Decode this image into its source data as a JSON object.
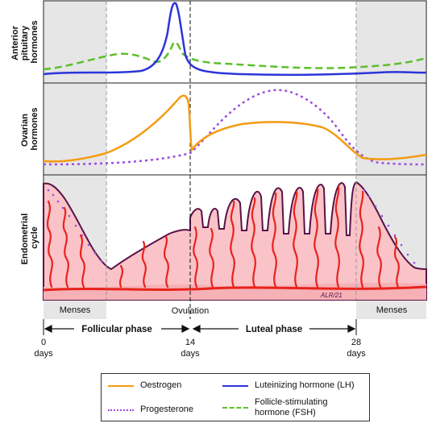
{
  "row_labels": {
    "pituitary": [
      "Anterior",
      "pituitary",
      "hormones"
    ],
    "ovarian": [
      "Ovarian",
      "hormones"
    ],
    "endometrial": [
      "Endometrial",
      "cycle"
    ]
  },
  "annotations": {
    "menses_left": "Menses",
    "menses_right": "Menses",
    "ovulation": "Ovulation",
    "follicular": "Follicular phase",
    "luteal": "Luteal phase",
    "signature": "ALR/21"
  },
  "axis": {
    "ticks": [
      {
        "value": "0",
        "unit": "days"
      },
      {
        "value": "14",
        "unit": "days"
      },
      {
        "value": "28",
        "unit": "days"
      }
    ]
  },
  "legend": [
    {
      "label": "Oestrogen",
      "color": "#f39c12",
      "style": "solid"
    },
    {
      "label": "Luteinizing hormone (LH)",
      "color": "#2b35d9",
      "style": "solid"
    },
    {
      "label": "Progesterone",
      "color": "#9a4de0",
      "style": "dotted"
    },
    {
      "label": "Follicle-stimulating hormone (FSH)",
      "color": "#5cbf2a",
      "style": "dashed"
    }
  ],
  "colors": {
    "menses_shade": "#e6e6e6",
    "endometrium_fill": "#f9c3c8",
    "endometrium_outline": "#5a1246",
    "vessel": "#e8231c"
  }
}
